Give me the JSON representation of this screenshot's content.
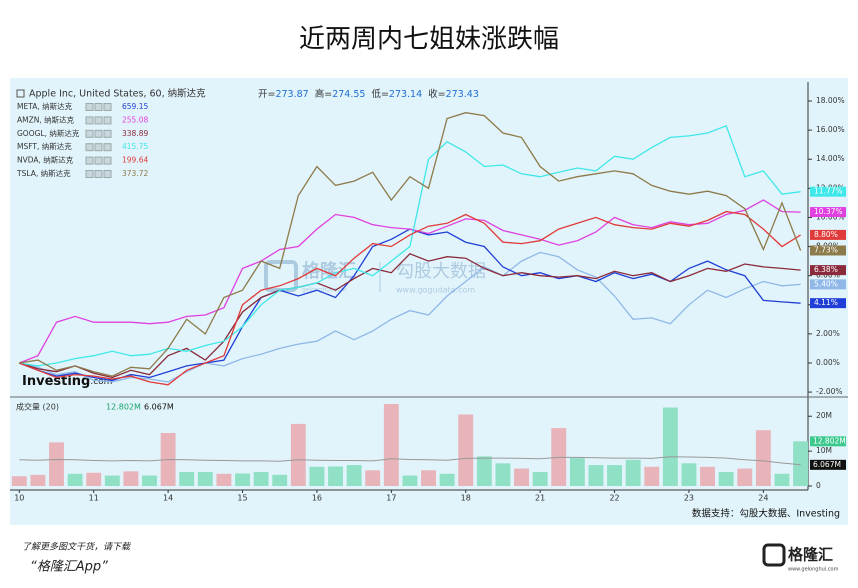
{
  "chart_data": {
    "type": "line",
    "title": "近两周内七姐妹涨跌幅",
    "main_legend": {
      "name": "Apple Inc, United States, 60, 纳斯达克",
      "ohlc": [
        {
          "label": "开=",
          "value": 273.87
        },
        {
          "label": "高=",
          "value": 274.55
        },
        {
          "label": "低=",
          "value": 273.14
        },
        {
          "label": "收=",
          "value": 273.43
        }
      ]
    },
    "x": [
      0,
      1,
      2,
      3,
      4,
      5,
      6,
      7,
      8,
      9,
      10,
      11,
      12,
      13,
      14,
      15,
      16,
      17,
      18,
      19,
      20,
      21,
      22,
      23,
      24,
      25,
      26,
      27,
      28,
      29,
      30,
      31,
      32,
      33,
      34,
      35,
      36,
      37,
      38,
      39,
      40,
      41,
      42
    ],
    "xlim": [
      -0.5,
      42.4
    ],
    "xticks": [
      {
        "value": 0,
        "label": "10"
      },
      {
        "value": 4,
        "label": "11"
      },
      {
        "value": 8,
        "label": "14"
      },
      {
        "value": 12,
        "label": "15"
      },
      {
        "value": 16,
        "label": "16"
      },
      {
        "value": 20,
        "label": "17"
      },
      {
        "value": 24,
        "label": "18"
      },
      {
        "value": 28,
        "label": "21"
      },
      {
        "value": 32,
        "label": "22"
      },
      {
        "value": 36,
        "label": "23"
      },
      {
        "value": 40,
        "label": "24"
      }
    ],
    "ylim": [
      -2.2,
      19.1
    ],
    "yticks": [
      {
        "value": -2,
        "label": "-2.00%"
      },
      {
        "value": 0,
        "label": "0.00%"
      },
      {
        "value": 2,
        "label": "2.00%"
      },
      {
        "value": 4,
        "label": "4.00%"
      },
      {
        "value": 6,
        "label": "6.00%"
      },
      {
        "value": 8,
        "label": "8.00%"
      },
      {
        "value": 10,
        "label": "10.00%"
      },
      {
        "value": 12,
        "label": "12.00%"
      },
      {
        "value": 14,
        "label": "14.00%"
      },
      {
        "value": 16,
        "label": "16.00%"
      },
      {
        "value": 18,
        "label": "18.00%"
      }
    ],
    "series": [
      {
        "name": "AAPL",
        "color": "#8fb8e8",
        "end_label": "5.40%",
        "values": [
          0,
          -0.3,
          -0.8,
          -0.6,
          -1.2,
          -1.3,
          -1.0,
          -1.1,
          -1.3,
          -0.6,
          0,
          -0.2,
          0.3,
          0.6,
          1.0,
          1.3,
          1.5,
          2.2,
          1.6,
          2.2,
          3.0,
          3.6,
          3.3,
          4.6,
          5.6,
          6.6,
          6.0,
          7.0,
          7.6,
          7.3,
          6.4,
          5.9,
          4.6,
          3.0,
          3.1,
          2.7,
          4.0,
          5.0,
          4.5,
          5.1,
          5.6,
          5.3,
          5.4
        ]
      },
      {
        "name": "META, 纳斯达克",
        "price": 659.15,
        "color": "#1f3fd6",
        "end_label": "4.11%",
        "values": [
          0,
          -0.5,
          -0.9,
          -0.7,
          -1.0,
          -1.2,
          -0.8,
          -1.0,
          -0.6,
          -0.2,
          0,
          0.2,
          2.5,
          4.5,
          5.0,
          4.6,
          5.0,
          4.5,
          6.0,
          8.0,
          8.5,
          9.2,
          8.8,
          9.0,
          8.3,
          8.0,
          6.6,
          6.0,
          6.2,
          5.8,
          6.0,
          5.6,
          6.2,
          5.8,
          6.1,
          5.6,
          6.5,
          7.0,
          6.4,
          6.0,
          4.3,
          4.2,
          4.11
        ]
      },
      {
        "name": "AMZN, 纳斯达克",
        "price": 255.08,
        "color": "#e040e0",
        "end_label": "10.37%",
        "values": [
          0,
          0.5,
          2.8,
          3.2,
          2.8,
          2.8,
          2.8,
          2.7,
          2.8,
          3.2,
          3.3,
          3.8,
          6.5,
          7.0,
          7.8,
          8.0,
          9.2,
          10.2,
          10.0,
          9.5,
          9.3,
          9.2,
          8.9,
          9.4,
          9.9,
          9.8,
          9.1,
          8.8,
          8.5,
          8.1,
          8.4,
          9.0,
          10.0,
          9.5,
          9.3,
          9.7,
          9.5,
          9.6,
          10.2,
          10.5,
          11.2,
          10.4,
          10.37
        ]
      },
      {
        "name": "GOOGL, 纳斯达克",
        "price": 338.89,
        "color": "#8a2a3a",
        "end_label": "6.38%",
        "values": [
          0,
          -0.4,
          -0.6,
          -0.2,
          -0.7,
          -1.0,
          -0.5,
          -0.8,
          0.5,
          1.0,
          0.2,
          1.5,
          3.5,
          4.5,
          5.0,
          5.2,
          5.5,
          5.0,
          5.8,
          6.5,
          6.2,
          7.5,
          7.0,
          7.3,
          7.2,
          6.5,
          6.0,
          6.2,
          6.0,
          5.9,
          6.0,
          5.8,
          6.3,
          6.0,
          6.2,
          5.6,
          6.0,
          6.5,
          6.3,
          6.8,
          6.6,
          6.5,
          6.38
        ]
      },
      {
        "name": "MSFT, 纳斯达克",
        "price": 415.75,
        "color": "#3ee8e8",
        "end_label": "11.77%",
        "values": [
          0,
          -0.2,
          0,
          0.3,
          0.5,
          0.8,
          0.5,
          0.6,
          1.0,
          0.8,
          1.2,
          1.5,
          2.5,
          4.0,
          5.0,
          5.2,
          5.5,
          6.2,
          6.5,
          6.0,
          7.0,
          8.0,
          14.0,
          15.2,
          14.5,
          13.5,
          13.6,
          13.0,
          12.8,
          13.1,
          13.4,
          13.2,
          14.2,
          14.0,
          14.8,
          15.5,
          15.6,
          15.8,
          16.3,
          12.8,
          13.2,
          11.6,
          11.77
        ]
      },
      {
        "name": "NVDA, 纳斯达克",
        "price": 199.64,
        "color": "#e03a3a",
        "end_label": "8.80%",
        "values": [
          0,
          -0.5,
          -1.0,
          -0.8,
          -0.9,
          -1.1,
          -0.9,
          -1.3,
          -1.5,
          -0.5,
          0,
          0.5,
          4.0,
          5.0,
          5.3,
          5.8,
          6.5,
          6.0,
          7.2,
          8.2,
          8.0,
          8.8,
          9.4,
          9.6,
          10.2,
          9.6,
          8.3,
          8.2,
          8.4,
          9.2,
          9.6,
          10.0,
          9.5,
          9.3,
          9.2,
          9.6,
          9.4,
          9.8,
          10.4,
          10.2,
          9.2,
          8.0,
          8.8
        ]
      },
      {
        "name": "TSLA, 纳斯达克",
        "price": 373.72,
        "color": "#8c7a4a",
        "end_label": "7.73%",
        "values": [
          0,
          0.2,
          -0.5,
          -0.2,
          -0.6,
          -0.9,
          -0.3,
          -0.4,
          1.0,
          3.0,
          2.0,
          4.5,
          5.0,
          7.0,
          6.5,
          11.5,
          13.5,
          12.2,
          12.5,
          13.1,
          11.2,
          12.8,
          12.0,
          16.8,
          17.2,
          17.0,
          15.8,
          15.5,
          13.5,
          12.5,
          12.8,
          13.0,
          13.2,
          13.0,
          12.2,
          11.8,
          11.6,
          11.8,
          11.5,
          10.6,
          7.8,
          11.0,
          7.73
        ]
      }
    ],
    "volume": {
      "title": "成交量 (20)",
      "last_label": "12.802M",
      "ma_label": "6.067M",
      "ylim": [
        0,
        25.8
      ],
      "yticks": [
        {
          "value": 0,
          "label": "0"
        },
        {
          "value": 10,
          "label": "10M"
        },
        {
          "value": 20,
          "label": "20M"
        }
      ],
      "values": [
        2.8,
        3.2,
        12.5,
        3.5,
        3.8,
        3.0,
        4.2,
        3.0,
        15.2,
        4.0,
        4.0,
        3.5,
        3.6,
        4.0,
        3.2,
        17.8,
        5.5,
        5.6,
        6.0,
        4.5,
        23.5,
        3.0,
        4.5,
        3.5,
        20.5,
        8.5,
        6.5,
        5.0,
        4.0,
        16.6,
        8.0,
        6.0,
        6.0,
        7.5,
        5.5,
        22.5,
        6.5,
        5.5,
        4.0,
        5.0,
        16.0,
        3.5,
        12.802
      ],
      "colors": [
        "#e8b4ba",
        "#e8b4ba",
        "#e8b4ba",
        "#8fe0c4",
        "#e8b4ba",
        "#8fe0c4",
        "#e8b4ba",
        "#8fe0c4",
        "#e8b4ba",
        "#8fe0c4",
        "#8fe0c4",
        "#e8b4ba",
        "#8fe0c4",
        "#8fe0c4",
        "#8fe0c4",
        "#e8b4ba",
        "#8fe0c4",
        "#8fe0c4",
        "#8fe0c4",
        "#e8b4ba",
        "#e8b4ba",
        "#8fe0c4",
        "#e8b4ba",
        "#8fe0c4",
        "#e8b4ba",
        "#8fe0c4",
        "#8fe0c4",
        "#e8b4ba",
        "#8fe0c4",
        "#e8b4ba",
        "#8fe0c4",
        "#8fe0c4",
        "#8fe0c4",
        "#8fe0c4",
        "#e8b4ba",
        "#8fe0c4",
        "#8fe0c4",
        "#e8b4ba",
        "#8fe0c4",
        "#e8b4ba",
        "#e8b4ba",
        "#8fe0c4",
        "#8fe0c4"
      ],
      "ma_color": "#999999",
      "ma": [
        7.5,
        7.4,
        7.6,
        7.5,
        7.3,
        7.2,
        7.3,
        7.2,
        7.6,
        7.5,
        7.4,
        7.3,
        7.2,
        7.2,
        7.1,
        7.5,
        7.4,
        7.3,
        7.3,
        7.2,
        7.8,
        7.6,
        7.5,
        7.4,
        7.9,
        8.0,
        8.0,
        7.9,
        7.8,
        8.2,
        8.2,
        8.1,
        8.0,
        8.0,
        7.9,
        8.4,
        8.3,
        8.2,
        8.0,
        7.5,
        7.2,
        6.6,
        6.067
      ]
    },
    "watermark": {
      "brand": "格隆汇",
      "brand_url": "gelonghui.com",
      "data": "勾股大数据",
      "data_url": "www.gogudata.com"
    },
    "investing_logo": {
      "name": "Investing",
      "suffix": ".com"
    },
    "source": "数据支持：勾股大数据、Investing",
    "footer": {
      "note": "了解更多图文干货，请下载",
      "app": "“格隆汇App”",
      "logo": "格隆汇",
      "url": "www.gelonghui.com"
    }
  }
}
